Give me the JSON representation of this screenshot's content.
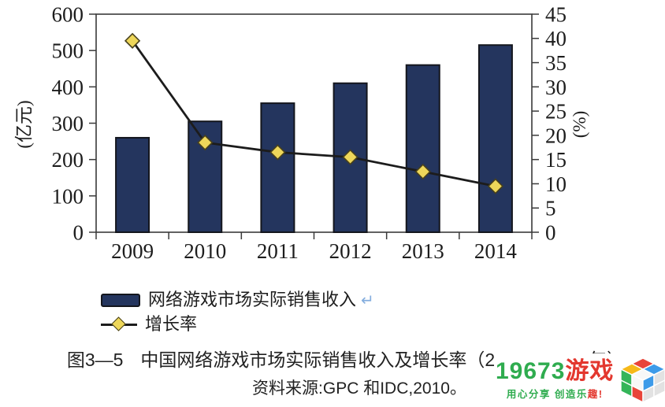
{
  "chart_data": {
    "type": "bar",
    "title": "图3—5 中国网络游戏市场实际销售收入及增长率（2009—2014 年）",
    "categories": [
      "2009",
      "2010",
      "2011",
      "2012",
      "2013",
      "2014"
    ],
    "series": [
      {
        "name": "网络游戏市场实际销售收入",
        "type": "bar",
        "axis": "left",
        "unit": "亿元",
        "values": [
          260,
          305,
          355,
          410,
          460,
          515
        ]
      },
      {
        "name": "增长率",
        "type": "line",
        "marker": "diamond",
        "axis": "right",
        "unit": "%",
        "values": [
          39.5,
          18.5,
          16.5,
          15.5,
          12.5,
          9.5
        ]
      }
    ],
    "left_axis": {
      "label": "(亿元)",
      "min": 0,
      "max": 600,
      "step": 100
    },
    "right_axis": {
      "label": "(%)",
      "min": 0,
      "max": 45,
      "step": 5
    },
    "grid": false,
    "legend_position": "bottom-left"
  },
  "legend": {
    "return_mark": "↵"
  },
  "caption": {
    "figure_label": "图3—5",
    "title": "中国网络游戏市场实际销售收入及增长率",
    "period": "（2009—2014 年）",
    "source": "资料来源:GPC  和IDC,2010。"
  },
  "watermark": {
    "brand_green": "19673",
    "brand_red": "游戏",
    "tagline_green": "用心分享 创造乐",
    "tagline_red": "趣!",
    "cube_palette": {
      "red": "#e8453a",
      "blue": "#3d9be9",
      "yellow": "#f6b919",
      "green": "#34b559",
      "gray": "#e2e2e2",
      "white": "#f7f7f7"
    }
  },
  "colors": {
    "bar_fill": "#24355e",
    "bar_stroke": "#14161d",
    "line": "#1c1c1c",
    "marker_fill": "#eed75a",
    "marker_stroke": "#48411c",
    "axis": "#3a3a3a",
    "text": "#1d1d1d",
    "watermark_green": "#2fac4f",
    "watermark_red": "#e3372e",
    "return_mark_blue": "#85aede"
  }
}
